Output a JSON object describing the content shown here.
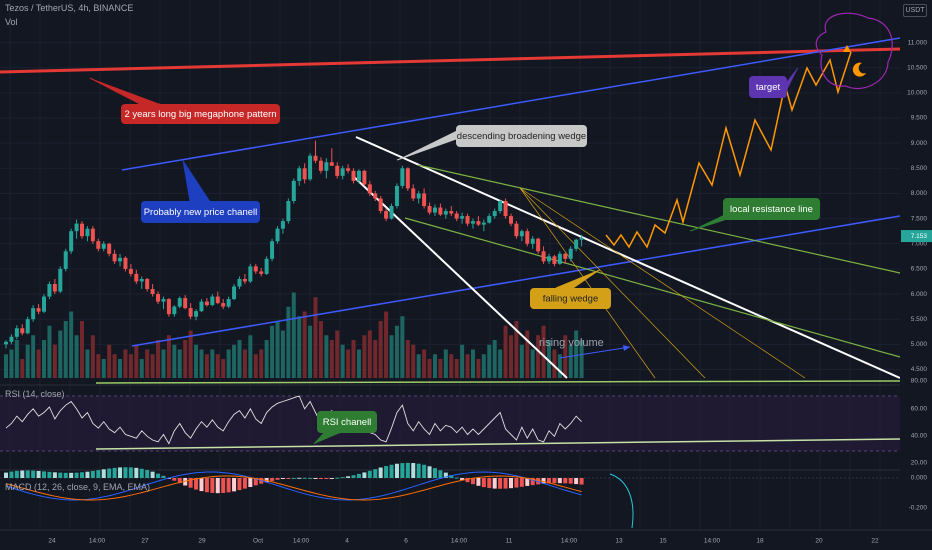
{
  "header": {
    "symbol_line": "Tezos / TetherUS, 4h, BINANCE",
    "volume_label": "Vol",
    "currency": "USDT"
  },
  "colors": {
    "background": "#131722",
    "up_candle": "#26a69a",
    "down_candle": "#ef5350",
    "megaphone_line": "#e53935",
    "channel_line": "#3d5afe",
    "wedge_line": "#ffffff",
    "falling_wedge": "#7cb342",
    "projection": "#ff9800",
    "target_cloud": "#9c27b0"
  },
  "annotations": {
    "megaphone": "2 years long big megaphone pattern",
    "price_channel": "Probably new price chanell",
    "broadening_wedge": "descending broadening wedge",
    "falling_wedge": "falling wedge",
    "resistance": "local resistance line",
    "target": "target",
    "rising_volume": "rising volume",
    "rsi_channel": "RSI chanell"
  },
  "price_axis": {
    "ticks": [
      "11.000",
      "10.500",
      "10.000",
      "9.500",
      "9.000",
      "8.500",
      "8.000",
      "7.500",
      "7.000",
      "6.500",
      "6.000",
      "5.500",
      "5.000",
      "4.500"
    ],
    "current_price": "7.153"
  },
  "rsi_panel": {
    "label": "RSI (14, close)",
    "ticks": [
      "80.00",
      "60.00",
      "40.00",
      "20.00"
    ]
  },
  "macd_panel": {
    "label": "MACD (12, 26, close, 9, EMA, EMA)",
    "ticks": [
      "0.000",
      "-0.200"
    ]
  },
  "time_axis": {
    "ticks": [
      "24",
      "14:00",
      "27",
      "29",
      "Oct",
      "14:00",
      "4",
      "6",
      "14:00",
      "11",
      "14:00",
      "13",
      "15",
      "14:00",
      "18",
      "20",
      "22"
    ]
  },
  "chart_data": {
    "type": "candlestick",
    "title": "Tezos / TetherUS, 4h, BINANCE",
    "y_unit": "USDT",
    "ylim": [
      4.45,
      11.25
    ],
    "ohlc": [
      [
        5.0,
        5.08,
        4.92,
        5.05
      ],
      [
        5.05,
        5.2,
        5.0,
        5.15
      ],
      [
        5.15,
        5.38,
        5.1,
        5.32
      ],
      [
        5.32,
        5.4,
        5.18,
        5.22
      ],
      [
        5.22,
        5.55,
        5.2,
        5.5
      ],
      [
        5.5,
        5.78,
        5.45,
        5.72
      ],
      [
        5.72,
        5.8,
        5.6,
        5.65
      ],
      [
        5.65,
        6.0,
        5.62,
        5.95
      ],
      [
        5.95,
        6.25,
        5.9,
        6.2
      ],
      [
        6.2,
        6.3,
        6.0,
        6.05
      ],
      [
        6.05,
        6.55,
        6.02,
        6.5
      ],
      [
        6.5,
        6.9,
        6.45,
        6.85
      ],
      [
        6.85,
        7.3,
        6.8,
        7.25
      ],
      [
        7.25,
        7.48,
        7.1,
        7.4
      ],
      [
        7.4,
        7.45,
        7.1,
        7.15
      ],
      [
        7.15,
        7.35,
        7.05,
        7.3
      ],
      [
        7.3,
        7.35,
        7.0,
        7.05
      ],
      [
        7.05,
        7.1,
        6.85,
        6.9
      ],
      [
        6.9,
        7.05,
        6.85,
        7.0
      ],
      [
        7.0,
        7.02,
        6.75,
        6.8
      ],
      [
        6.8,
        6.88,
        6.6,
        6.65
      ],
      [
        6.65,
        6.8,
        6.55,
        6.72
      ],
      [
        6.72,
        6.75,
        6.45,
        6.5
      ],
      [
        6.5,
        6.6,
        6.35,
        6.4
      ],
      [
        6.4,
        6.48,
        6.2,
        6.25
      ],
      [
        6.25,
        6.35,
        6.1,
        6.3
      ],
      [
        6.3,
        6.32,
        6.05,
        6.1
      ],
      [
        6.1,
        6.2,
        5.95,
        6.0
      ],
      [
        6.0,
        6.05,
        5.8,
        5.85
      ],
      [
        5.85,
        5.95,
        5.7,
        5.9
      ],
      [
        5.9,
        5.92,
        5.55,
        5.6
      ],
      [
        5.6,
        5.78,
        5.55,
        5.75
      ],
      [
        5.75,
        5.95,
        5.72,
        5.92
      ],
      [
        5.92,
        5.98,
        5.7,
        5.72
      ],
      [
        5.72,
        5.82,
        5.5,
        5.55
      ],
      [
        5.55,
        5.7,
        5.48,
        5.66
      ],
      [
        5.66,
        5.9,
        5.64,
        5.85
      ],
      [
        5.85,
        5.92,
        5.75,
        5.78
      ],
      [
        5.78,
        6.0,
        5.76,
        5.95
      ],
      [
        5.95,
        6.05,
        5.8,
        5.82
      ],
      [
        5.82,
        5.9,
        5.7,
        5.75
      ],
      [
        5.75,
        5.95,
        5.72,
        5.9
      ],
      [
        5.9,
        6.2,
        5.88,
        6.15
      ],
      [
        6.15,
        6.35,
        6.1,
        6.3
      ],
      [
        6.3,
        6.4,
        6.2,
        6.25
      ],
      [
        6.25,
        6.6,
        6.22,
        6.55
      ],
      [
        6.55,
        6.6,
        6.4,
        6.45
      ],
      [
        6.45,
        6.52,
        6.35,
        6.4
      ],
      [
        6.4,
        6.75,
        6.38,
        6.7
      ],
      [
        6.7,
        7.1,
        6.65,
        7.05
      ],
      [
        7.05,
        7.35,
        7.0,
        7.3
      ],
      [
        7.3,
        7.5,
        7.2,
        7.45
      ],
      [
        7.45,
        7.9,
        7.4,
        7.85
      ],
      [
        7.85,
        8.3,
        7.8,
        8.25
      ],
      [
        8.25,
        8.55,
        8.15,
        8.5
      ],
      [
        8.5,
        8.6,
        8.2,
        8.28
      ],
      [
        8.28,
        8.8,
        8.25,
        8.75
      ],
      [
        8.75,
        9.05,
        8.6,
        8.65
      ],
      [
        8.65,
        8.72,
        8.4,
        8.45
      ],
      [
        8.45,
        8.7,
        8.3,
        8.62
      ],
      [
        8.62,
        8.9,
        8.55,
        8.55
      ],
      [
        8.55,
        8.62,
        8.3,
        8.35
      ],
      [
        8.35,
        8.55,
        8.28,
        8.5
      ],
      [
        8.5,
        8.58,
        8.4,
        8.45
      ],
      [
        8.45,
        8.5,
        8.2,
        8.25
      ],
      [
        8.25,
        8.48,
        8.2,
        8.45
      ],
      [
        8.45,
        8.47,
        8.15,
        8.18
      ],
      [
        8.18,
        8.25,
        7.95,
        8.0
      ],
      [
        8.0,
        8.05,
        7.85,
        7.9
      ],
      [
        7.9,
        7.95,
        7.6,
        7.65
      ],
      [
        7.65,
        7.7,
        7.45,
        7.5
      ],
      [
        7.5,
        7.8,
        7.48,
        7.75
      ],
      [
        7.75,
        8.2,
        7.7,
        8.15
      ],
      [
        8.15,
        8.55,
        8.1,
        8.5
      ],
      [
        8.5,
        8.52,
        8.05,
        8.1
      ],
      [
        8.1,
        8.18,
        7.85,
        7.9
      ],
      [
        7.9,
        8.05,
        7.8,
        8.0
      ],
      [
        8.0,
        8.1,
        7.7,
        7.75
      ],
      [
        7.75,
        7.82,
        7.58,
        7.62
      ],
      [
        7.62,
        7.78,
        7.55,
        7.72
      ],
      [
        7.72,
        7.8,
        7.55,
        7.58
      ],
      [
        7.58,
        7.7,
        7.5,
        7.65
      ],
      [
        7.65,
        7.75,
        7.55,
        7.6
      ],
      [
        7.6,
        7.65,
        7.45,
        7.5
      ],
      [
        7.5,
        7.62,
        7.4,
        7.55
      ],
      [
        7.55,
        7.6,
        7.35,
        7.4
      ],
      [
        7.4,
        7.5,
        7.3,
        7.45
      ],
      [
        7.45,
        7.55,
        7.35,
        7.38
      ],
      [
        7.38,
        7.48,
        7.25,
        7.42
      ],
      [
        7.42,
        7.6,
        7.4,
        7.55
      ],
      [
        7.55,
        7.7,
        7.5,
        7.65
      ],
      [
        7.65,
        7.88,
        7.6,
        7.85
      ],
      [
        7.85,
        7.9,
        7.5,
        7.55
      ],
      [
        7.55,
        7.6,
        7.35,
        7.4
      ],
      [
        7.4,
        7.45,
        7.1,
        7.15
      ],
      [
        7.15,
        7.28,
        7.05,
        7.25
      ],
      [
        7.25,
        7.3,
        6.95,
        7.0
      ],
      [
        7.0,
        7.15,
        6.9,
        7.1
      ],
      [
        7.1,
        7.12,
        6.8,
        6.85
      ],
      [
        6.85,
        6.95,
        6.6,
        6.65
      ],
      [
        6.65,
        6.8,
        6.6,
        6.75
      ],
      [
        6.75,
        6.78,
        6.55,
        6.6
      ],
      [
        6.6,
        6.85,
        6.58,
        6.8
      ],
      [
        6.8,
        6.82,
        6.6,
        6.7
      ],
      [
        6.7,
        6.95,
        6.65,
        6.9
      ],
      [
        6.9,
        7.1,
        6.85,
        7.08
      ],
      [
        7.08,
        7.18,
        6.95,
        7.12
      ]
    ],
    "volume_ratio": [
      0.25,
      0.3,
      0.4,
      0.2,
      0.35,
      0.45,
      0.3,
      0.4,
      0.55,
      0.35,
      0.5,
      0.6,
      0.7,
      0.45,
      0.6,
      0.3,
      0.45,
      0.25,
      0.2,
      0.35,
      0.25,
      0.2,
      0.3,
      0.25,
      0.35,
      0.2,
      0.3,
      0.25,
      0.4,
      0.3,
      0.45,
      0.35,
      0.3,
      0.4,
      0.5,
      0.35,
      0.3,
      0.25,
      0.3,
      0.25,
      0.2,
      0.3,
      0.35,
      0.4,
      0.3,
      0.45,
      0.25,
      0.3,
      0.4,
      0.55,
      0.6,
      0.5,
      0.75,
      0.9,
      0.65,
      0.7,
      0.55,
      0.85,
      0.6,
      0.45,
      0.4,
      0.5,
      0.35,
      0.3,
      0.4,
      0.3,
      0.45,
      0.5,
      0.4,
      0.6,
      0.7,
      0.45,
      0.55,
      0.65,
      0.4,
      0.35,
      0.25,
      0.3,
      0.2,
      0.25,
      0.2,
      0.3,
      0.25,
      0.2,
      0.35,
      0.25,
      0.3,
      0.2,
      0.25,
      0.35,
      0.4,
      0.3,
      0.55,
      0.45,
      0.6,
      0.35,
      0.5,
      0.3,
      0.45,
      0.55,
      0.4,
      0.3,
      0.25,
      0.45,
      0.35,
      0.5,
      0.4
    ],
    "rsi": [
      45,
      50,
      58,
      52,
      60,
      66,
      58,
      62,
      68,
      55,
      64,
      70,
      74,
      66,
      56,
      62,
      50,
      45,
      52,
      44,
      40,
      46,
      38,
      36,
      34,
      42,
      36,
      32,
      30,
      38,
      28,
      42,
      50,
      40,
      34,
      44,
      52,
      46,
      54,
      46,
      42,
      52,
      60,
      64,
      56,
      66,
      55,
      50,
      62,
      68,
      72,
      74,
      76,
      78,
      80,
      66,
      74,
      62,
      50,
      60,
      64,
      52,
      60,
      55,
      48,
      58,
      46,
      40,
      38,
      32,
      30,
      45,
      62,
      70,
      50,
      42,
      52,
      44,
      38,
      50,
      42,
      48,
      46,
      40,
      46,
      38,
      44,
      38,
      44,
      50,
      56,
      62,
      44,
      38,
      32,
      46,
      34,
      44,
      32,
      30,
      42,
      36,
      50,
      44,
      50,
      58,
      52
    ],
    "projection_points": [
      [
        606,
        235
      ],
      [
        614,
        245
      ],
      [
        621,
        235
      ],
      [
        629,
        247
      ],
      [
        637,
        232
      ],
      [
        647,
        247
      ],
      [
        655,
        225
      ],
      [
        665,
        233
      ],
      [
        677,
        200
      ],
      [
        683,
        222
      ],
      [
        699,
        163
      ],
      [
        712,
        185
      ],
      [
        726,
        128
      ],
      [
        740,
        175
      ],
      [
        755,
        120
      ],
      [
        771,
        150
      ],
      [
        785,
        85
      ],
      [
        792,
        110
      ],
      [
        807,
        68
      ],
      [
        816,
        85
      ],
      [
        830,
        60
      ],
      [
        838,
        92
      ],
      [
        851,
        52
      ]
    ]
  }
}
